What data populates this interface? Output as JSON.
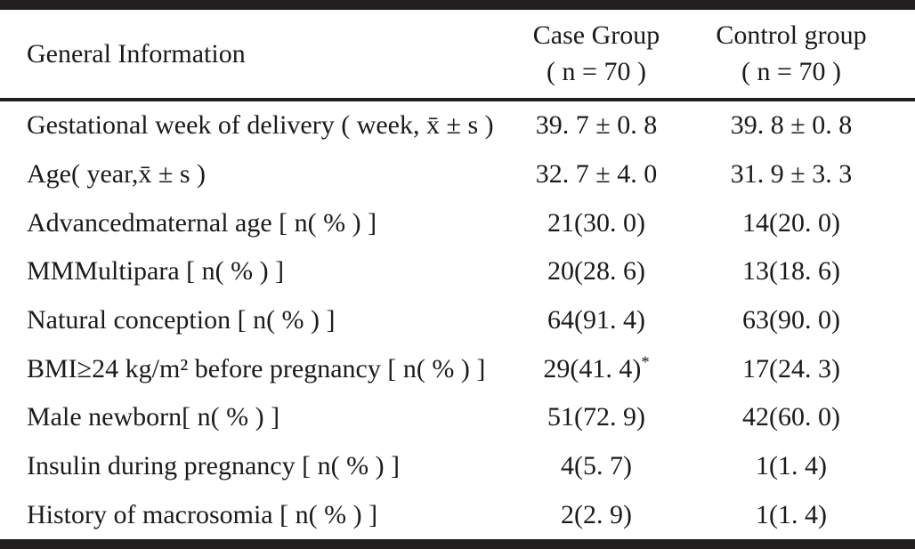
{
  "page": {
    "background_color": "#ffffff",
    "text_color": "#1c1a1b",
    "rule_color": "#221f20"
  },
  "table": {
    "header": {
      "general_information": "General Information",
      "case_group_line1": "Case Group",
      "case_group_line2": "( n = 70 )",
      "control_group_line1": "Control group",
      "control_group_line2": "( n = 70 )"
    },
    "rows": [
      {
        "label": "Gestational week of delivery ( week, x̄ ± s )",
        "case_value": "39. 7 ± 0. 8",
        "case_note": "",
        "control_value": "39. 8 ± 0. 8"
      },
      {
        "label": "Age( year,x̄ ± s )",
        "case_value": "32. 7 ± 4. 0",
        "case_note": "",
        "control_value": "31. 9 ± 3. 3"
      },
      {
        "label": "Advancedmaternal age [ n( % ) ]",
        "case_value": "21(30. 0)",
        "case_note": "",
        "control_value": "14(20. 0)"
      },
      {
        "label": "MMMultipara [ n( % ) ]",
        "case_value": "20(28. 6)",
        "case_note": "",
        "control_value": "13(18. 6)"
      },
      {
        "label": "Natural conception [ n( % ) ]",
        "case_value": "64(91. 4)",
        "case_note": "",
        "control_value": "63(90. 0)"
      },
      {
        "label": "BMI≥24 kg/m² before pregnancy [ n( % ) ]",
        "case_value": "29(41. 4)",
        "case_note": "*",
        "control_value": "17(24. 3)"
      },
      {
        "label": "Male newborn[ n( % ) ]",
        "case_value": "51(72. 9)",
        "case_note": "",
        "control_value": "42(60. 0)"
      },
      {
        "label": "Insulin during pregnancy [ n( % ) ]",
        "case_value": "4(5. 7)",
        "case_note": "",
        "control_value": "1(1. 4)"
      },
      {
        "label": "History of macrosomia [ n( % ) ]",
        "case_value": "2(2. 9)",
        "case_note": "",
        "control_value": "1(1. 4)"
      }
    ]
  }
}
